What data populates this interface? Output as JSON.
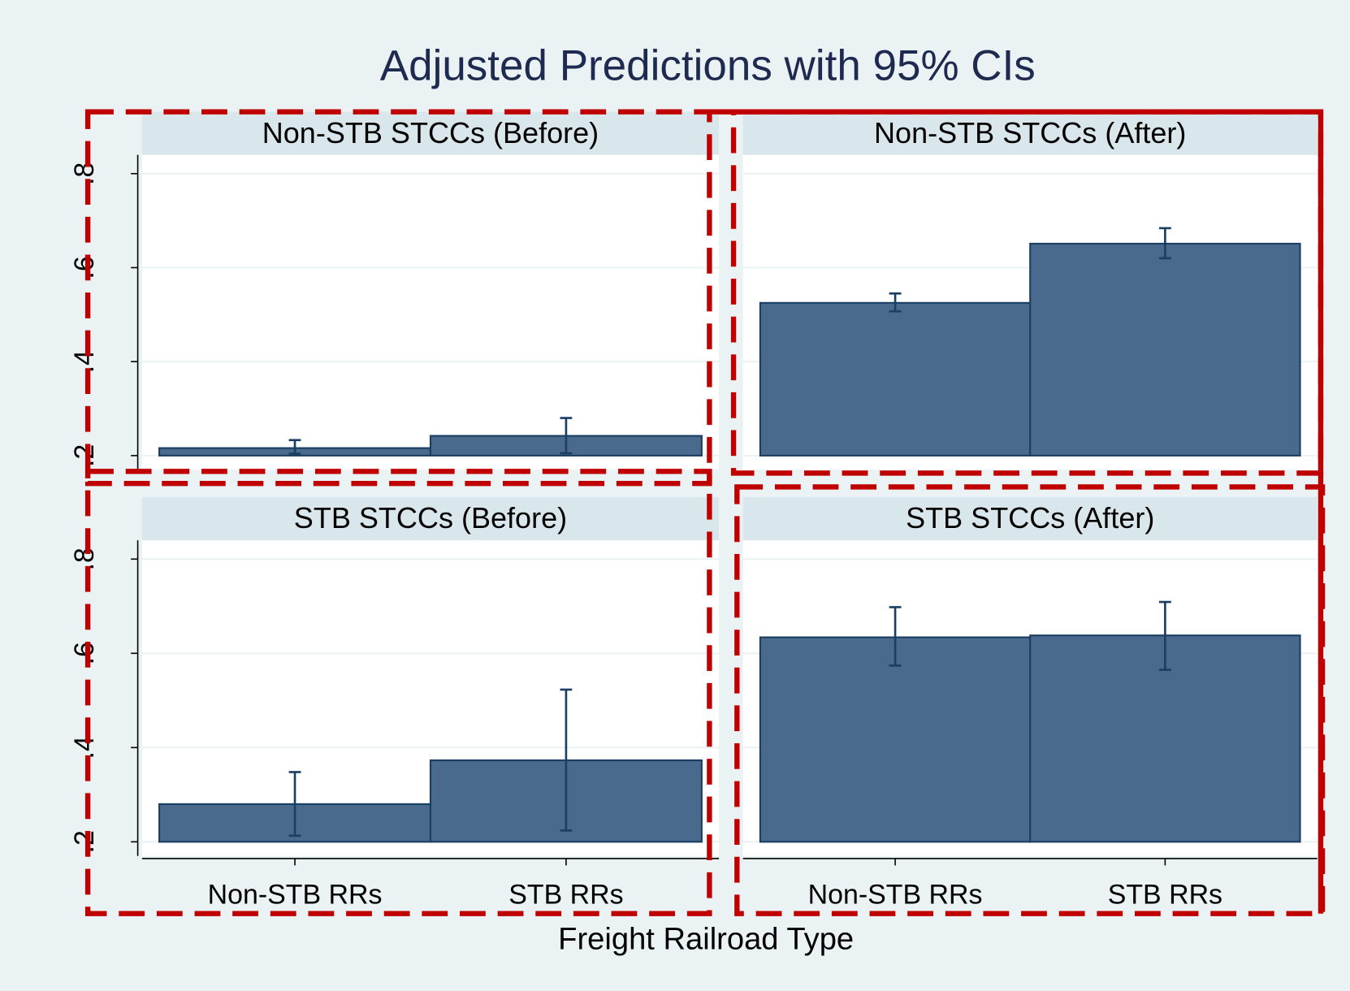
{
  "title": "Adjusted Predictions with 95% CIs",
  "xlabel": "Freight Railroad Type",
  "chart_data": [
    {
      "type": "bar",
      "title": "Non-STB STCCs (Before)",
      "categories": [
        null,
        null
      ],
      "values": [
        0.216,
        0.242
      ],
      "lower": [
        0.204,
        0.205
      ],
      "upper": [
        0.233,
        0.28
      ],
      "color": "#496a8c",
      "bar_base": 0.2,
      "ylim": [
        0.17,
        0.84
      ],
      "yticks": [
        {
          "value": 0.2,
          "label": ".2"
        },
        {
          "value": 0.4,
          "label": ".4"
        },
        {
          "value": 0.6,
          "label": ".6"
        },
        {
          "value": 0.8,
          "label": ".8"
        }
      ],
      "grid": true
    },
    {
      "type": "bar",
      "title": "Non-STB STCCs (After)",
      "categories": [
        null,
        null
      ],
      "values": [
        0.525,
        0.651
      ],
      "lower": [
        0.507,
        0.62
      ],
      "upper": [
        0.545,
        0.684
      ],
      "color": "#496a8c",
      "bar_base": 0.2,
      "ylim": [
        0.17,
        0.84
      ],
      "yticks": [
        0.2,
        0.4,
        0.6,
        0.8
      ],
      "ytick_labels": false,
      "grid": true
    },
    {
      "type": "bar",
      "title": "STB STCCs (Before)",
      "categories": [
        "Non-STB RRs",
        "STB RRs"
      ],
      "values": [
        0.28,
        0.373
      ],
      "lower": [
        0.213,
        0.224
      ],
      "upper": [
        0.348,
        0.523
      ],
      "color": "#496a8c",
      "bar_base": 0.2,
      "ylim": [
        0.17,
        0.84
      ],
      "yticks": [
        {
          "value": 0.2,
          "label": ".2"
        },
        {
          "value": 0.4,
          "label": ".4"
        },
        {
          "value": 0.6,
          "label": ".6"
        },
        {
          "value": 0.8,
          "label": ".8"
        }
      ],
      "grid": true
    },
    {
      "type": "bar",
      "title": "STB STCCs (After)",
      "categories": [
        "Non-STB RRs",
        "STB RRs"
      ],
      "values": [
        0.634,
        0.638
      ],
      "lower": [
        0.574,
        0.565
      ],
      "upper": [
        0.698,
        0.709
      ],
      "color": "#496a8c",
      "bar_base": 0.2,
      "ylim": [
        0.17,
        0.84
      ],
      "yticks": [
        0.2,
        0.4,
        0.6,
        0.8
      ],
      "ytick_labels": false,
      "grid": true
    }
  ]
}
